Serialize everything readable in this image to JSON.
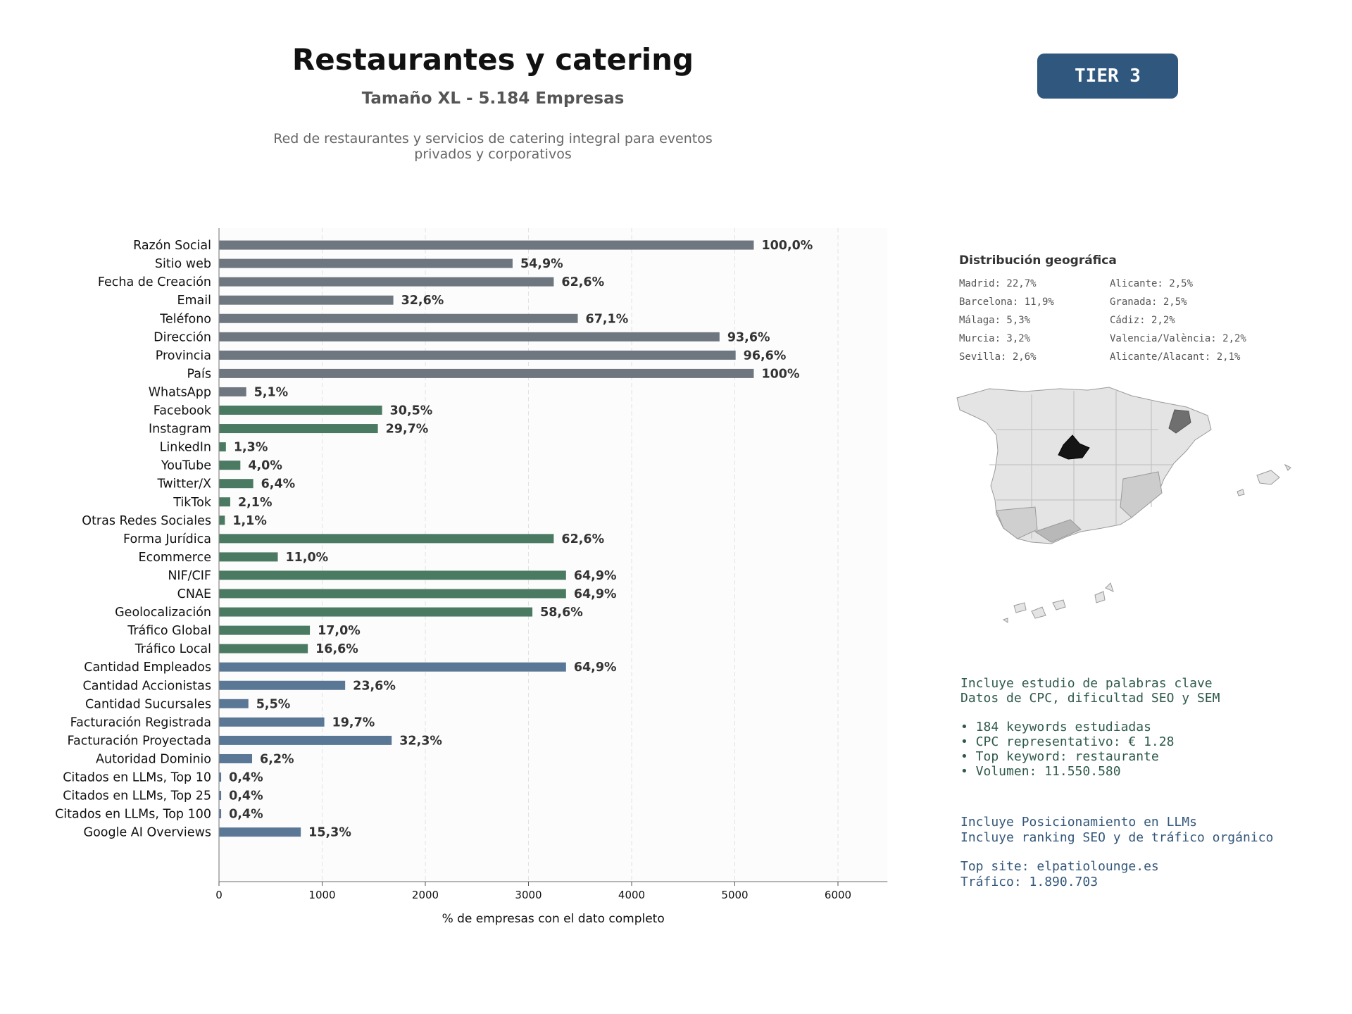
{
  "header": {
    "title": "Restaurantes y catering",
    "subtitle": "Tamaño XL - 5.184 Empresas",
    "description_line1": "Red de restaurantes y servicios de catering integral para eventos",
    "description_line2": "privados y corporativos",
    "tier": "TIER 3"
  },
  "chart_data": {
    "type": "bar",
    "orientation": "horizontal",
    "xlabel": "% de empresas con el dato completo",
    "xlim": [
      0,
      6480
    ],
    "xticks": [
      "0",
      "1000",
      "2000",
      "3000",
      "4000",
      "5000",
      "6000"
    ],
    "grid": "vertical dashed",
    "categories": [
      "Razón Social",
      "Sitio web",
      "Fecha de Creación",
      "Email",
      "Teléfono",
      "Dirección",
      "Provincia",
      "País",
      "WhatsApp",
      "Facebook",
      "Instagram",
      "LinkedIn",
      "YouTube",
      "Twitter/X",
      "TikTok",
      "Otras Redes Sociales",
      "Forma Jurídica",
      "Ecommerce",
      "NIF/CIF",
      "CNAE",
      "Geolocalización",
      "Tráfico Global",
      "Tráfico Local",
      "Cantidad Empleados",
      "Cantidad Accionistas",
      "Cantidad Sucursales",
      "Facturación Registrada",
      "Facturación Proyectada",
      "Autoridad Dominio",
      "Citados en LLMs, Top 10",
      "Citados en LLMs, Top 25",
      "Citados en LLMs, Top 100",
      "Google AI Overviews"
    ],
    "values": [
      5184,
      2846,
      3245,
      1690,
      3478,
      4852,
      5008,
      5184,
      264,
      1581,
      1540,
      67,
      207,
      332,
      109,
      57,
      3245,
      570,
      3364,
      3364,
      3038,
      881,
      861,
      3364,
      1223,
      285,
      1021,
      1674,
      321,
      21,
      21,
      21,
      793
    ],
    "labels": [
      "100,0%",
      "54,9%",
      "62,6%",
      "32,6%",
      "67,1%",
      "93,6%",
      "96,6%",
      "100%",
      "5,1%",
      "30,5%",
      "29,7%",
      "1,3%",
      "4,0%",
      "6,4%",
      "2,1%",
      "1,1%",
      "62,6%",
      "11,0%",
      "64,9%",
      "64,9%",
      "58,6%",
      "17,0%",
      "16,6%",
      "64,9%",
      "23,6%",
      "5,5%",
      "19,7%",
      "32,3%",
      "6,2%",
      "0,4%",
      "0,4%",
      "0,4%",
      "15,3%"
    ],
    "groups": [
      "basic",
      "basic",
      "basic",
      "basic",
      "basic",
      "basic",
      "basic",
      "basic",
      "basic",
      "digital",
      "digital",
      "digital",
      "digital",
      "digital",
      "digital",
      "digital",
      "digital",
      "digital",
      "digital",
      "digital",
      "digital",
      "digital",
      "digital",
      "business",
      "business",
      "business",
      "business",
      "business",
      "business",
      "business",
      "business",
      "business",
      "business"
    ],
    "colors": {
      "basic": "#6e7780",
      "digital": "#4b7a62",
      "business": "#5a7896"
    }
  },
  "geo": {
    "title": "Distribución geográfica",
    "col1": [
      "Madrid: 22,7%",
      "Barcelona: 11,9%",
      "Málaga: 5,3%",
      "Murcia: 3,2%",
      "Sevilla: 2,6%"
    ],
    "col2": [
      "Alicante: 2,5%",
      "Granada: 2,5%",
      "Cádiz: 2,2%",
      "Valencia/València: 2,2%",
      "Alicante/Alacant: 2,1%"
    ]
  },
  "keywords": {
    "line1": "Incluye estudio de palabras clave",
    "line2": "Datos de CPC, dificultad SEO y SEM",
    "bullets": [
      "• 184 keywords estudiadas",
      "• CPC representativo: € 1.28",
      "• Top keyword: restaurante",
      "• Volumen: 11.550.580"
    ]
  },
  "llm": {
    "line1": "Incluye Posicionamiento en LLMs",
    "line2": "Incluye ranking SEO y de tráfico orgánico",
    "top_site": "Top site: elpatiolounge.es",
    "traffic": "Tráfico: 1.890.703"
  }
}
